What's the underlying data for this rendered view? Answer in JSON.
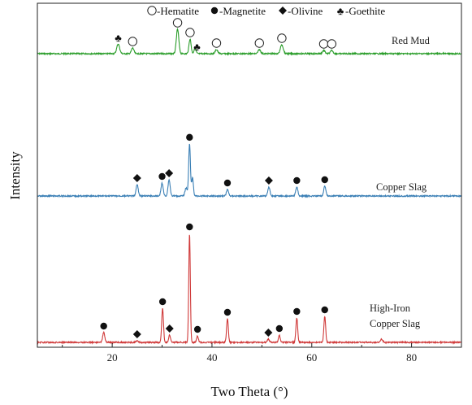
{
  "chart_data": {
    "type": "line",
    "xlabel": "Two Theta (°)",
    "ylabel": "Intensity",
    "xlim": [
      5,
      90
    ],
    "x_ticks": [
      20,
      40,
      60,
      80
    ],
    "legend": {
      "placement": "top",
      "entries": [
        {
          "symbol": "hollow-circle",
          "text": "-Hematite"
        },
        {
          "symbol": "filled-circle",
          "text": "-Magnetite"
        },
        {
          "symbol": "filled-diamond",
          "text": "-Olivine"
        },
        {
          "symbol": "club",
          "text": "-Goethite"
        }
      ]
    },
    "series": [
      {
        "name": "Red Mud",
        "color": "#2a9d2a",
        "peaks": [
          {
            "x": 21.2,
            "h": 12,
            "w": 0.4
          },
          {
            "x": 24.1,
            "h": 7,
            "w": 0.35
          },
          {
            "x": 33.1,
            "h": 30,
            "w": 0.35
          },
          {
            "x": 35.6,
            "h": 18,
            "w": 0.3
          },
          {
            "x": 36.6,
            "h": 6,
            "w": 0.3
          },
          {
            "x": 40.9,
            "h": 5,
            "w": 0.35
          },
          {
            "x": 49.5,
            "h": 5,
            "w": 0.35
          },
          {
            "x": 54.0,
            "h": 11,
            "w": 0.4
          },
          {
            "x": 62.4,
            "h": 4,
            "w": 0.35
          },
          {
            "x": 64.0,
            "h": 4,
            "w": 0.35
          }
        ],
        "markers": [
          {
            "x": 21.2,
            "type": "club"
          },
          {
            "x": 24.1,
            "type": "hollow-circle"
          },
          {
            "x": 33.1,
            "type": "hollow-circle"
          },
          {
            "x": 35.6,
            "type": "hollow-circle"
          },
          {
            "x": 37.0,
            "type": "club"
          },
          {
            "x": 40.9,
            "type": "hollow-circle"
          },
          {
            "x": 49.5,
            "type": "hollow-circle"
          },
          {
            "x": 54.0,
            "type": "hollow-circle"
          },
          {
            "x": 62.4,
            "type": "hollow-circle"
          },
          {
            "x": 64.0,
            "type": "hollow-circle"
          }
        ]
      },
      {
        "name": "Copper Slag",
        "color": "#3a7fb5",
        "peaks": [
          {
            "x": 25.0,
            "h": 14,
            "w": 0.3
          },
          {
            "x": 30.0,
            "h": 16,
            "w": 0.3
          },
          {
            "x": 31.4,
            "h": 20,
            "w": 0.3
          },
          {
            "x": 34.8,
            "h": 10,
            "w": 0.3
          },
          {
            "x": 35.5,
            "h": 64,
            "w": 0.25
          },
          {
            "x": 36.1,
            "h": 22,
            "w": 0.25
          },
          {
            "x": 43.1,
            "h": 8,
            "w": 0.3
          },
          {
            "x": 51.4,
            "h": 11,
            "w": 0.3
          },
          {
            "x": 57.0,
            "h": 11,
            "w": 0.3
          },
          {
            "x": 62.6,
            "h": 12,
            "w": 0.3
          }
        ],
        "markers": [
          {
            "x": 25.0,
            "type": "filled-diamond"
          },
          {
            "x": 30.0,
            "type": "filled-circle"
          },
          {
            "x": 31.4,
            "type": "filled-diamond"
          },
          {
            "x": 35.5,
            "type": "filled-circle"
          },
          {
            "x": 43.1,
            "type": "filled-circle"
          },
          {
            "x": 51.4,
            "type": "filled-diamond"
          },
          {
            "x": 57.0,
            "type": "filled-circle"
          },
          {
            "x": 62.6,
            "type": "filled-circle"
          }
        ]
      },
      {
        "name": "High-Iron Copper Slag",
        "label_lines": [
          "High-Iron",
          "Copper Slag"
        ],
        "color": "#d03a3a",
        "peaks": [
          {
            "x": 18.3,
            "h": 12,
            "w": 0.3
          },
          {
            "x": 25.0,
            "h": 2,
            "w": 0.3
          },
          {
            "x": 30.1,
            "h": 42,
            "w": 0.25
          },
          {
            "x": 31.5,
            "h": 9,
            "w": 0.25
          },
          {
            "x": 35.5,
            "h": 134,
            "w": 0.22
          },
          {
            "x": 37.1,
            "h": 8,
            "w": 0.25
          },
          {
            "x": 43.1,
            "h": 29,
            "w": 0.25
          },
          {
            "x": 51.3,
            "h": 4,
            "w": 0.3
          },
          {
            "x": 53.5,
            "h": 9,
            "w": 0.25
          },
          {
            "x": 57.0,
            "h": 30,
            "w": 0.25
          },
          {
            "x": 62.6,
            "h": 32,
            "w": 0.25
          },
          {
            "x": 74.0,
            "h": 4,
            "w": 0.3
          }
        ],
        "markers": [
          {
            "x": 18.3,
            "type": "filled-circle"
          },
          {
            "x": 25.0,
            "type": "filled-diamond"
          },
          {
            "x": 30.1,
            "type": "filled-circle"
          },
          {
            "x": 31.5,
            "type": "filled-diamond"
          },
          {
            "x": 35.5,
            "type": "filled-circle"
          },
          {
            "x": 37.1,
            "type": "filled-circle"
          },
          {
            "x": 43.1,
            "type": "filled-circle"
          },
          {
            "x": 51.3,
            "type": "filled-diamond"
          },
          {
            "x": 53.5,
            "type": "filled-circle"
          },
          {
            "x": 57.0,
            "type": "filled-circle"
          },
          {
            "x": 62.6,
            "type": "filled-circle"
          }
        ]
      }
    ]
  }
}
